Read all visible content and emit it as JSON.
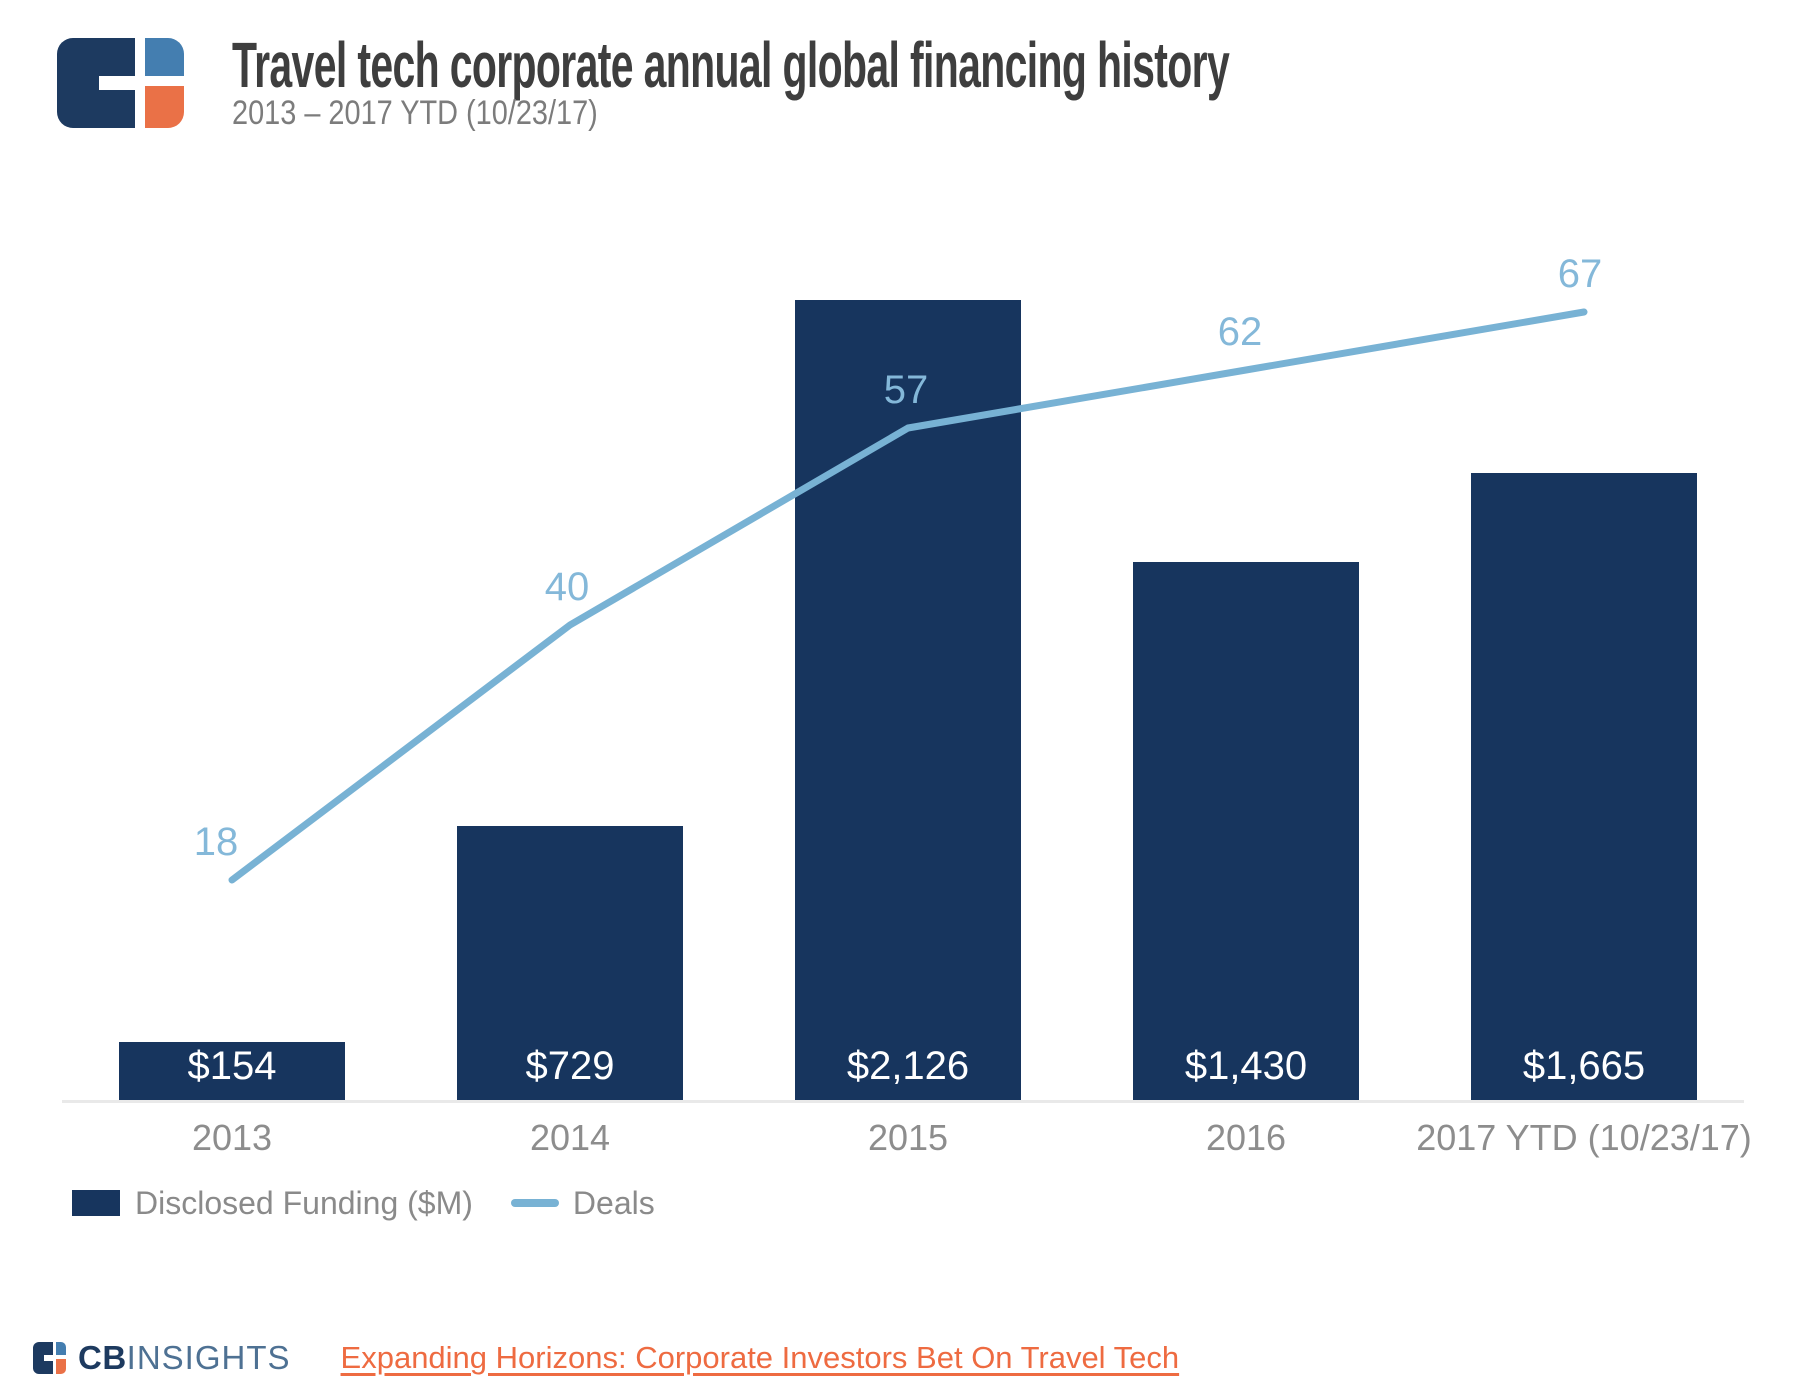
{
  "header": {
    "title": "Travel tech corporate annual global financing history",
    "subtitle": "2013 – 2017 YTD (10/23/17)"
  },
  "chart_data": {
    "type": "combo-bar-line",
    "title": "Travel tech corporate annual global financing history",
    "subtitle": "2013 – 2017 YTD (10/23/17)",
    "categories": [
      "2013",
      "2014",
      "2015",
      "2016",
      "2017 YTD (10/23/17)"
    ],
    "series": [
      {
        "name": "Disclosed Funding ($M)",
        "type": "bar",
        "values": [
          154,
          729,
          2126,
          1430,
          1665
        ],
        "value_labels": [
          "$154",
          "$729",
          "$2,126",
          "$1,430",
          "$1,665"
        ],
        "color": "#17355e"
      },
      {
        "name": "Deals",
        "type": "line",
        "values": [
          18,
          40,
          57,
          62,
          67
        ],
        "value_labels": [
          "18",
          "40",
          "57",
          "62",
          "67"
        ],
        "color": "#78b2d4"
      }
    ],
    "xlabel": "",
    "ylabel": "",
    "grid": false,
    "bar_axis_range": [
      0,
      2200
    ],
    "legend_position": "bottom-left",
    "value_labels_position": {
      "bar": "inside-bottom",
      "line": "above-point"
    }
  },
  "legend": {
    "funding_label": "Disclosed Funding ($M)",
    "deals_label": "Deals"
  },
  "footer": {
    "brand_cb": "CB",
    "brand_insights": "INSIGHTS",
    "link_text": "Expanding Horizons: Corporate Investors Bet On Travel Tech"
  },
  "colors": {
    "bar_navy": "#17355e",
    "line_blue": "#78b2d4",
    "line_label_blue": "#84b8d9",
    "title_gray": "#3e3e3e",
    "sub_gray": "#7c7c7c",
    "tick_gray": "#8d8d8d",
    "legend_gray": "#8a8a8a",
    "axis_gray": "#e9e9e9",
    "logo_navy": "#1d3a60",
    "logo_blue": "#447eb0",
    "logo_orange": "#ea7147",
    "brand_navy": "#1d3a5f",
    "brand_steel": "#4e7193",
    "link_orange": "#ee6b41"
  }
}
